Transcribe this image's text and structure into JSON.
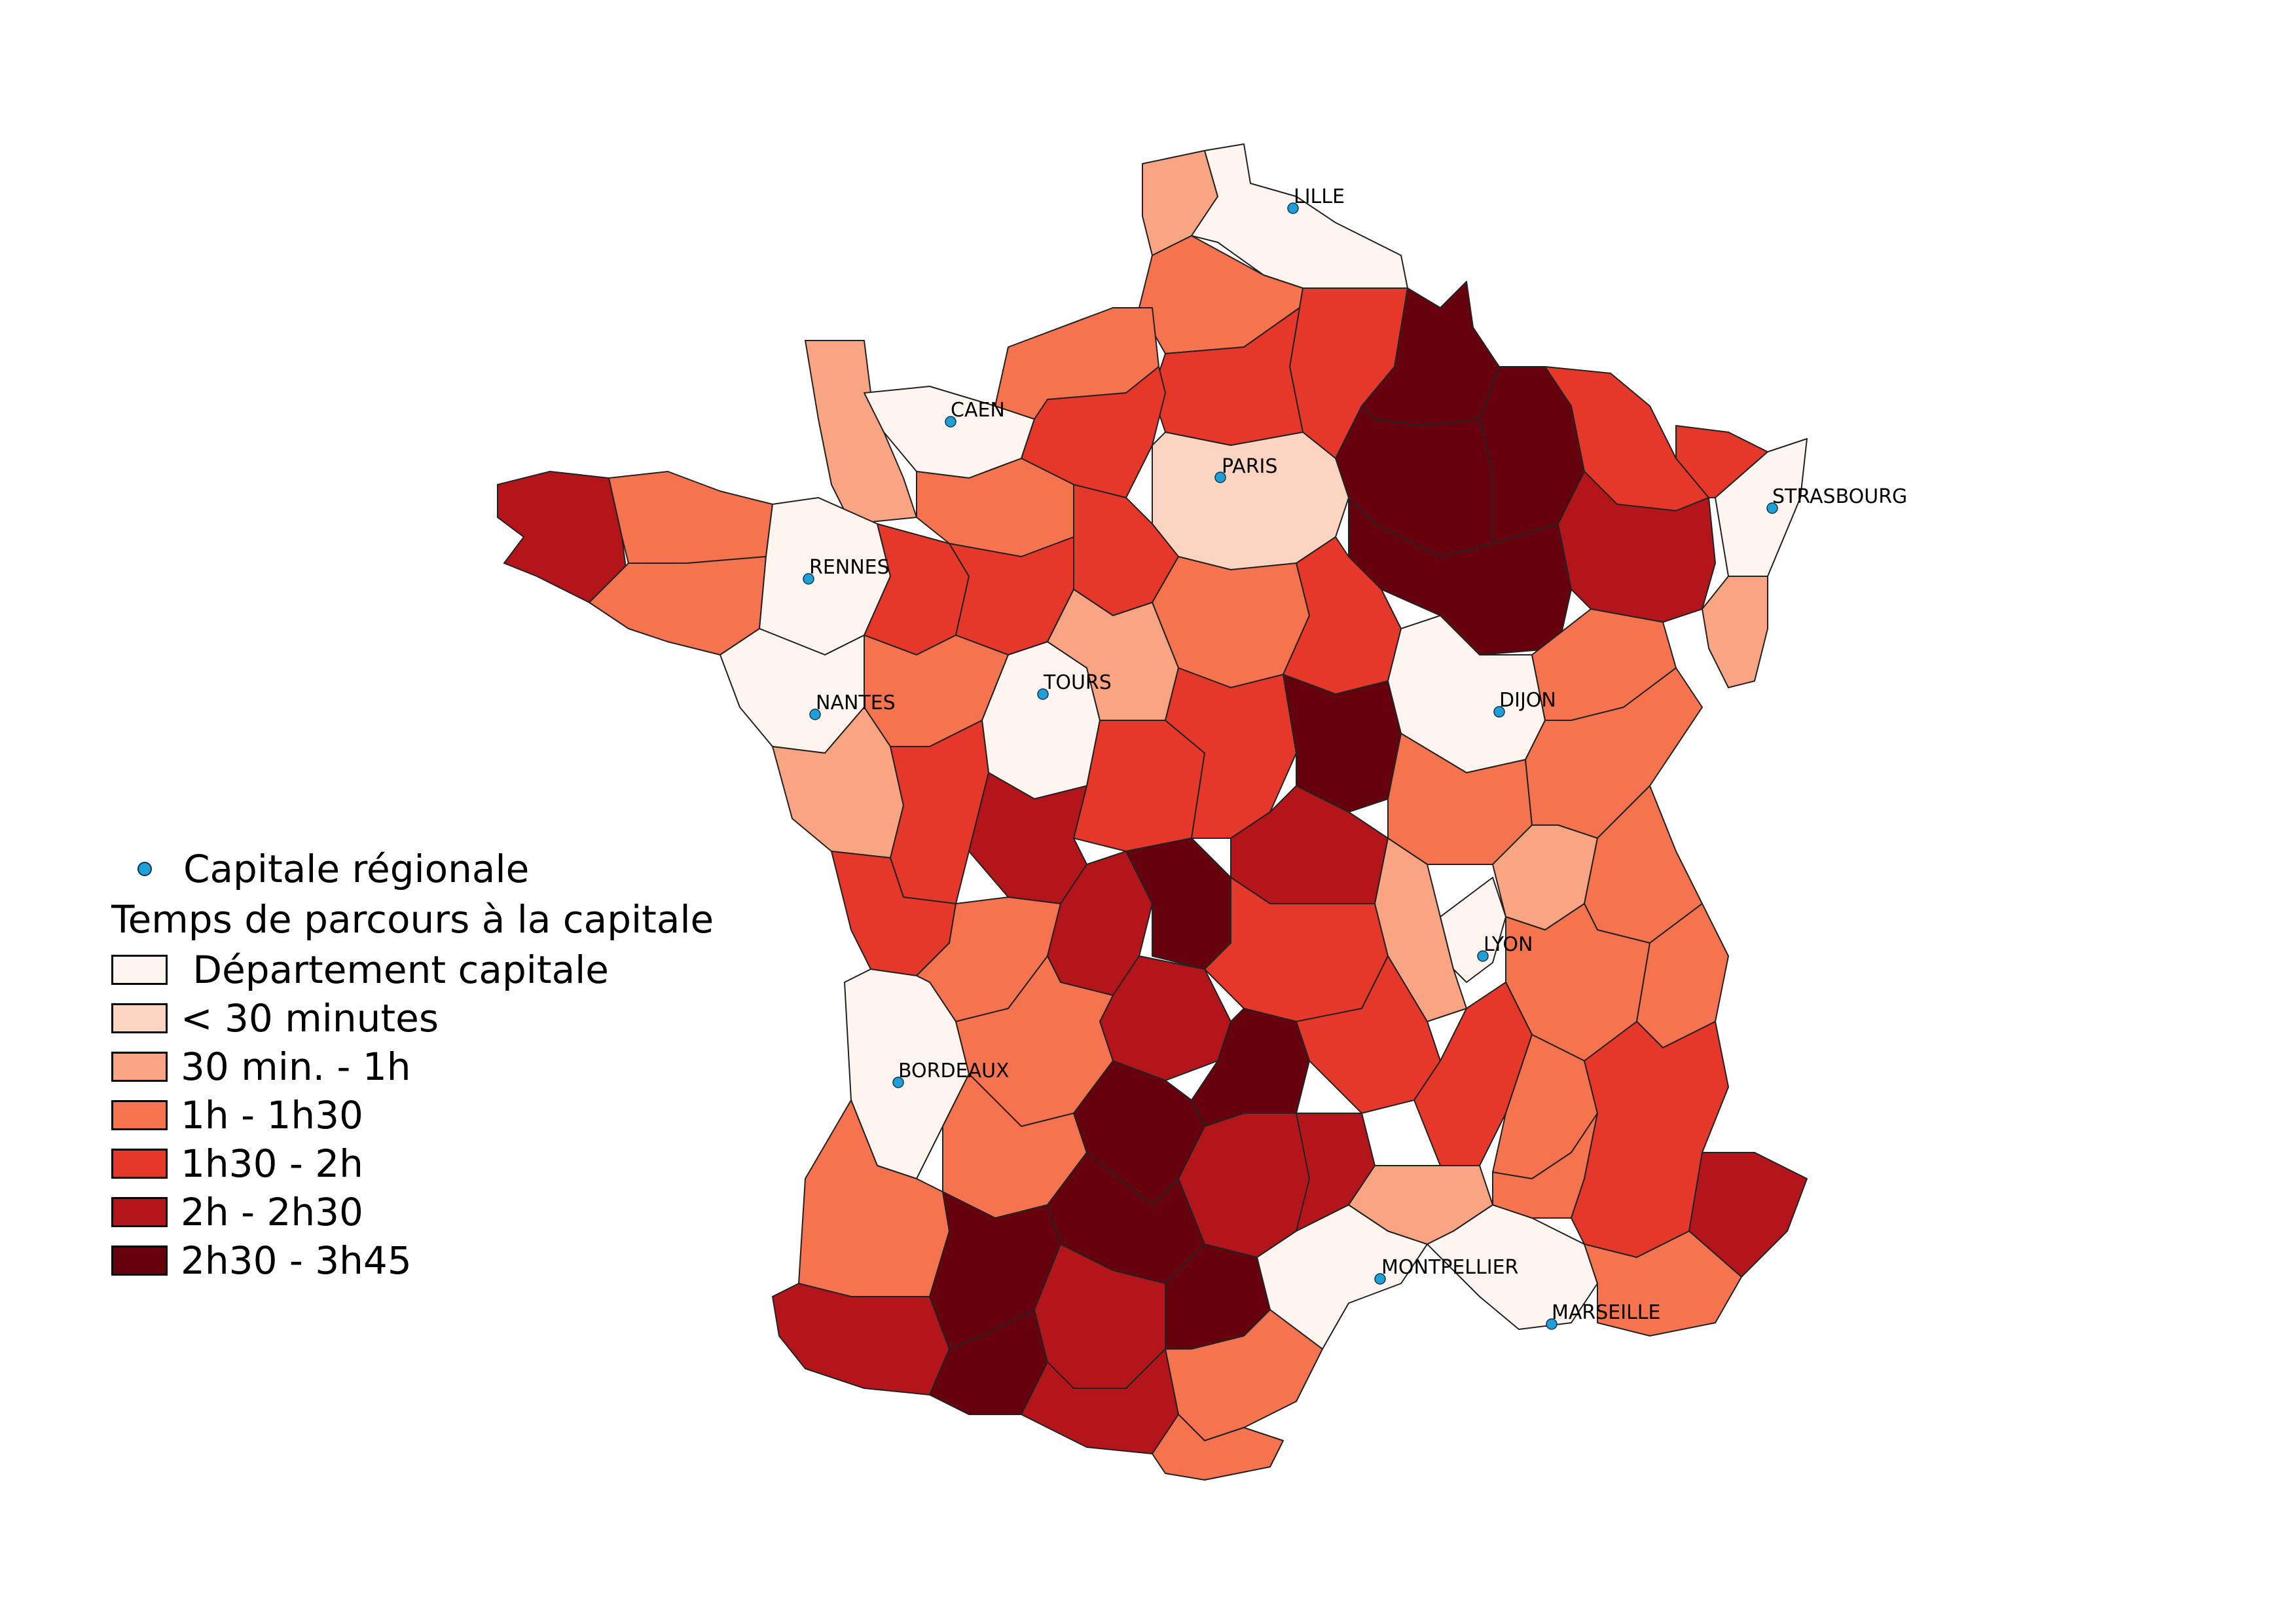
{
  "legend": {
    "capital_label": "Capitale régionale",
    "title": "Temps de parcours à la capitale",
    "classes": [
      {
        "label": " Département capitale",
        "color": "#fff5f0"
      },
      {
        "label": "< 30 minutes",
        "color": "#fcd4c2"
      },
      {
        "label": "30 min. - 1h",
        "color": "#f9a482"
      },
      {
        "label": "1h - 1h30",
        "color": "#f5734f"
      },
      {
        "label": "1h30 - 2h",
        "color": "#e5372a"
      },
      {
        "label": "2h - 2h30",
        "color": "#b3151b"
      },
      {
        "label": "2h30 - 3h45",
        "color": "#67000d"
      }
    ]
  },
  "cities": [
    {
      "name": "LILLE"
    },
    {
      "name": "CAEN"
    },
    {
      "name": "PARIS"
    },
    {
      "name": "STRASBOURG"
    },
    {
      "name": "RENNES"
    },
    {
      "name": "NANTES"
    },
    {
      "name": "TOURS"
    },
    {
      "name": "DIJON"
    },
    {
      "name": "LYON"
    },
    {
      "name": "BORDEAUX"
    },
    {
      "name": "MONTPELLIER"
    },
    {
      "name": "MARSEILLE"
    }
  ]
}
